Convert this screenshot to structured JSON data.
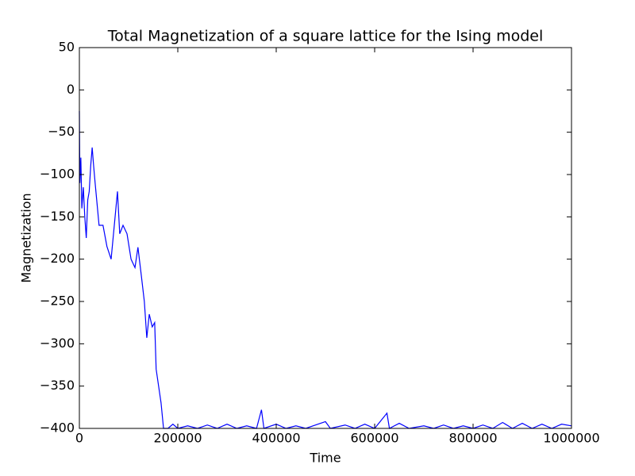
{
  "chart_data": {
    "type": "line",
    "title": "Total Magnetization of a square lattice for the Ising model",
    "x_label": "Time",
    "y_label": "Magnetization",
    "x": [
      0,
      1000,
      3000,
      5000,
      8000,
      11000,
      14000,
      17000,
      20000,
      23000,
      26000,
      29000,
      32000,
      40000,
      48000,
      56000,
      64500,
      72600,
      77400,
      82000,
      88700,
      96800,
      105000,
      113000,
      119000,
      126000,
      132000,
      137000,
      142000,
      148000,
      153000,
      156000,
      161000,
      166000,
      171000,
      180000,
      190000,
      200000,
      220000,
      240000,
      260000,
      280000,
      300000,
      320000,
      340000,
      360000,
      370000,
      375000,
      400000,
      420000,
      440000,
      460000,
      480000,
      500000,
      510000,
      540000,
      560000,
      580000,
      600000,
      625000,
      630000,
      650000,
      670000,
      700000,
      720000,
      740000,
      760000,
      780000,
      800000,
      820000,
      840000,
      860000,
      880000,
      900000,
      920000,
      940000,
      960000,
      980000,
      1000000
    ],
    "series": [
      {
        "name": "Magnetization",
        "color": "#0000ff",
        "values": [
          -25,
          -110,
          -80,
          -140,
          -115,
          -150,
          -175,
          -130,
          -120,
          -90,
          -68,
          -90,
          -110,
          -160,
          -160,
          -185,
          -200,
          -150,
          -120,
          -170,
          -160,
          -170,
          -200,
          -210,
          -186,
          -220,
          -250,
          -293,
          -265,
          -280,
          -275,
          -330,
          -350,
          -370,
          -400,
          -400,
          -395,
          -400,
          -397,
          -400,
          -396,
          -400,
          -395,
          -400,
          -397,
          -400,
          -378,
          -400,
          -395,
          -400,
          -397,
          -400,
          -396,
          -392,
          -400,
          -396,
          -400,
          -395,
          -400,
          -382,
          -400,
          -394,
          -400,
          -397,
          -400,
          -396,
          -400,
          -397,
          -400,
          -396,
          -400,
          -393,
          -400,
          -394,
          -400,
          -395,
          -400,
          -395,
          -397
        ]
      }
    ],
    "xlim": [
      0,
      1000000
    ],
    "xticks": [
      0,
      200000,
      400000,
      600000,
      800000,
      1000000
    ],
    "ylim": [
      -400,
      50
    ],
    "yticks": [
      {
        "value": -400,
        "label": "−400"
      },
      {
        "value": -350,
        "label": "−350"
      },
      {
        "value": -300,
        "label": "−300"
      },
      {
        "value": -250,
        "label": "−250"
      },
      {
        "value": -200,
        "label": "−200"
      },
      {
        "value": -150,
        "label": "−150"
      },
      {
        "value": -100,
        "label": "−100"
      },
      {
        "value": -50,
        "label": "−50"
      },
      0,
      50
    ],
    "grid": false
  }
}
